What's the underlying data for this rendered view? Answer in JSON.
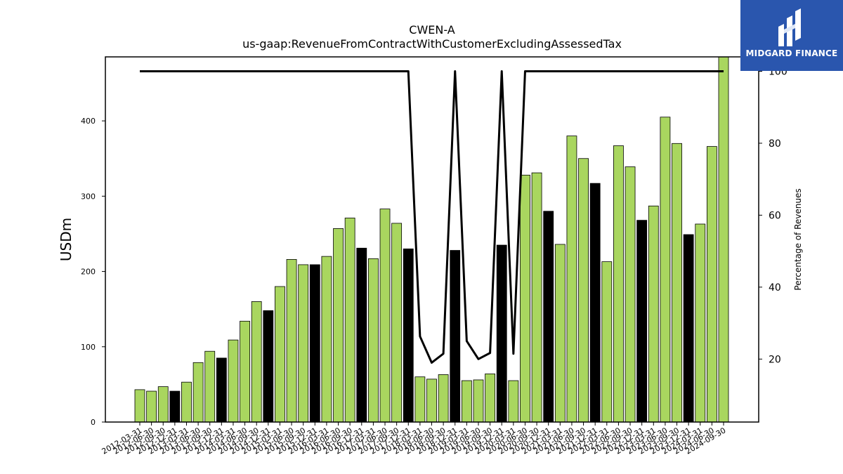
{
  "chart_data": {
    "type": "bar",
    "title": "CWEN-A",
    "subtitle": "us-gaap:RevenueFromContractWithCustomerExcludingAssessedTax",
    "ylabel": "USDm",
    "y2label": "Percentage of Revenues",
    "ylim": [
      0,
      485
    ],
    "y2lim": [
      2.5,
      104
    ],
    "yticks": [
      0,
      100,
      200,
      300,
      400
    ],
    "y2ticks": [
      20,
      40,
      60,
      80,
      100
    ],
    "categories": [
      "2012-03-31",
      "2012-06-30",
      "2012-09-30",
      "2012-12-31",
      "2013-03-31",
      "2013-06-30",
      "2013-09-30",
      "2013-12-31",
      "2014-03-31",
      "2014-06-30",
      "2014-09-30",
      "2014-12-31",
      "2015-03-31",
      "2015-06-30",
      "2015-09-30",
      "2015-12-31",
      "2016-03-31",
      "2016-06-30",
      "2016-09-30",
      "2016-12-31",
      "2017-03-31",
      "2017-06-30",
      "2017-09-30",
      "2017-12-31",
      "2018-03-31",
      "2018-06-30",
      "2018-09-30",
      "2018-12-31",
      "2019-03-31",
      "2019-06-30",
      "2019-09-30",
      "2019-12-31",
      "2020-03-31",
      "2020-06-30",
      "2020-09-30",
      "2020-12-31",
      "2021-03-31",
      "2021-06-30",
      "2021-09-30",
      "2021-12-31",
      "2022-03-31",
      "2022-06-30",
      "2022-09-30",
      "2022-12-31",
      "2023-03-31",
      "2023-06-30",
      "2023-09-30",
      "2023-12-31",
      "2024-03-31",
      "2024-06-30",
      "2024-09-30"
    ],
    "series": [
      {
        "type": "bar",
        "values": [
          43,
          41,
          47,
          41,
          53,
          79,
          94,
          85,
          109,
          134,
          160,
          148,
          180,
          216,
          209,
          209,
          220,
          257,
          271,
          231,
          217,
          283,
          264,
          230,
          60,
          57,
          63,
          228,
          55,
          56,
          64,
          235,
          55,
          328,
          331,
          280,
          236,
          380,
          350,
          317,
          213,
          367,
          339,
          268,
          287,
          405,
          370,
          249,
          263,
          366,
          490
        ],
        "colors": [
          "#a9d65f",
          "#a9d65f",
          "#a9d65f",
          "#000000",
          "#a9d65f",
          "#a9d65f",
          "#a9d65f",
          "#000000",
          "#a9d65f",
          "#a9d65f",
          "#a9d65f",
          "#000000",
          "#a9d65f",
          "#a9d65f",
          "#a9d65f",
          "#000000",
          "#a9d65f",
          "#a9d65f",
          "#a9d65f",
          "#000000",
          "#a9d65f",
          "#a9d65f",
          "#a9d65f",
          "#000000",
          "#a9d65f",
          "#a9d65f",
          "#a9d65f",
          "#000000",
          "#a9d65f",
          "#a9d65f",
          "#a9d65f",
          "#000000",
          "#a9d65f",
          "#a9d65f",
          "#a9d65f",
          "#000000",
          "#a9d65f",
          "#a9d65f",
          "#a9d65f",
          "#000000",
          "#a9d65f",
          "#a9d65f",
          "#a9d65f",
          "#000000",
          "#a9d65f",
          "#a9d65f",
          "#a9d65f",
          "#000000",
          "#a9d65f",
          "#a9d65f",
          "#a9d65f"
        ]
      },
      {
        "type": "line",
        "axis": "right",
        "color": "#000000",
        "values": [
          100,
          100,
          100,
          100,
          100,
          100,
          100,
          100,
          100,
          100,
          100,
          100,
          100,
          100,
          100,
          100,
          100,
          100,
          100,
          100,
          100,
          100,
          100,
          100,
          26.3,
          19,
          21.5,
          100,
          25,
          20,
          21.7,
          100,
          21.5,
          100,
          100,
          100,
          100,
          100,
          100,
          100,
          100,
          100,
          100,
          100,
          100,
          100,
          100,
          100,
          100,
          100,
          100
        ]
      }
    ],
    "colors": {
      "bar": "#a9d65f",
      "bar_q4": "#000000",
      "line": "#000000"
    },
    "grid": false,
    "legend": "none"
  },
  "logo": {
    "text": "MIDGARD FINANCE",
    "background": "#2a56ae"
  }
}
